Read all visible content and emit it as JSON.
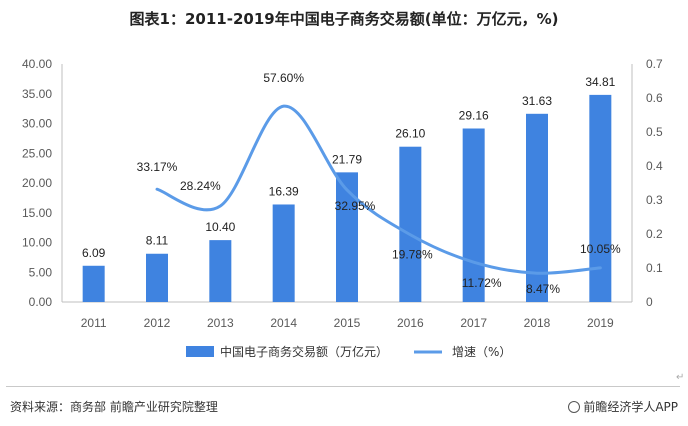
{
  "title": "图表1：2011-2019年中国电子商务交易额(单位：万亿元，%)",
  "source": "资料来源：商务部 前瞻产业研究院整理",
  "brand": "前瞻经济学人APP",
  "corner_mark": "↵",
  "colors": {
    "bar": "#3f83e0",
    "line": "#5b9be8",
    "axis": "#bfbfbf",
    "text": "#595959"
  },
  "chart_data": {
    "type": "bar",
    "categories": [
      "2011",
      "2012",
      "2013",
      "2014",
      "2015",
      "2016",
      "2017",
      "2018",
      "2019"
    ],
    "series": [
      {
        "name": "中国电子商务交易额（万亿元）",
        "type": "bar",
        "axis": "left",
        "values": [
          6.09,
          8.11,
          10.4,
          16.39,
          21.79,
          26.1,
          29.16,
          31.63,
          34.81
        ],
        "labels": [
          "6.09",
          "8.11",
          "10.40",
          "16.39",
          "21.79",
          "26.10",
          "29.16",
          "31.63",
          "34.81"
        ]
      },
      {
        "name": "增速（%）",
        "type": "line",
        "axis": "right",
        "values": [
          null,
          0.3317,
          0.2824,
          0.576,
          0.3295,
          0.1978,
          0.1172,
          0.0847,
          0.1005
        ],
        "labels": [
          "",
          "33.17%",
          "28.24%",
          "57.60%",
          "32.95%",
          "19.78%",
          "11.72%",
          "8.47%",
          "10.05%"
        ]
      }
    ],
    "y_left": {
      "min": 0,
      "max": 40,
      "ticks": [
        "0.00",
        "5.00",
        "10.00",
        "15.00",
        "20.00",
        "25.00",
        "30.00",
        "35.00",
        "40.00"
      ]
    },
    "y_right": {
      "min": 0,
      "max": 0.7,
      "ticks": [
        "0",
        "0.1",
        "0.2",
        "0.3",
        "0.4",
        "0.5",
        "0.6",
        "0.7"
      ]
    },
    "legend_position": "bottom",
    "grid": false
  }
}
